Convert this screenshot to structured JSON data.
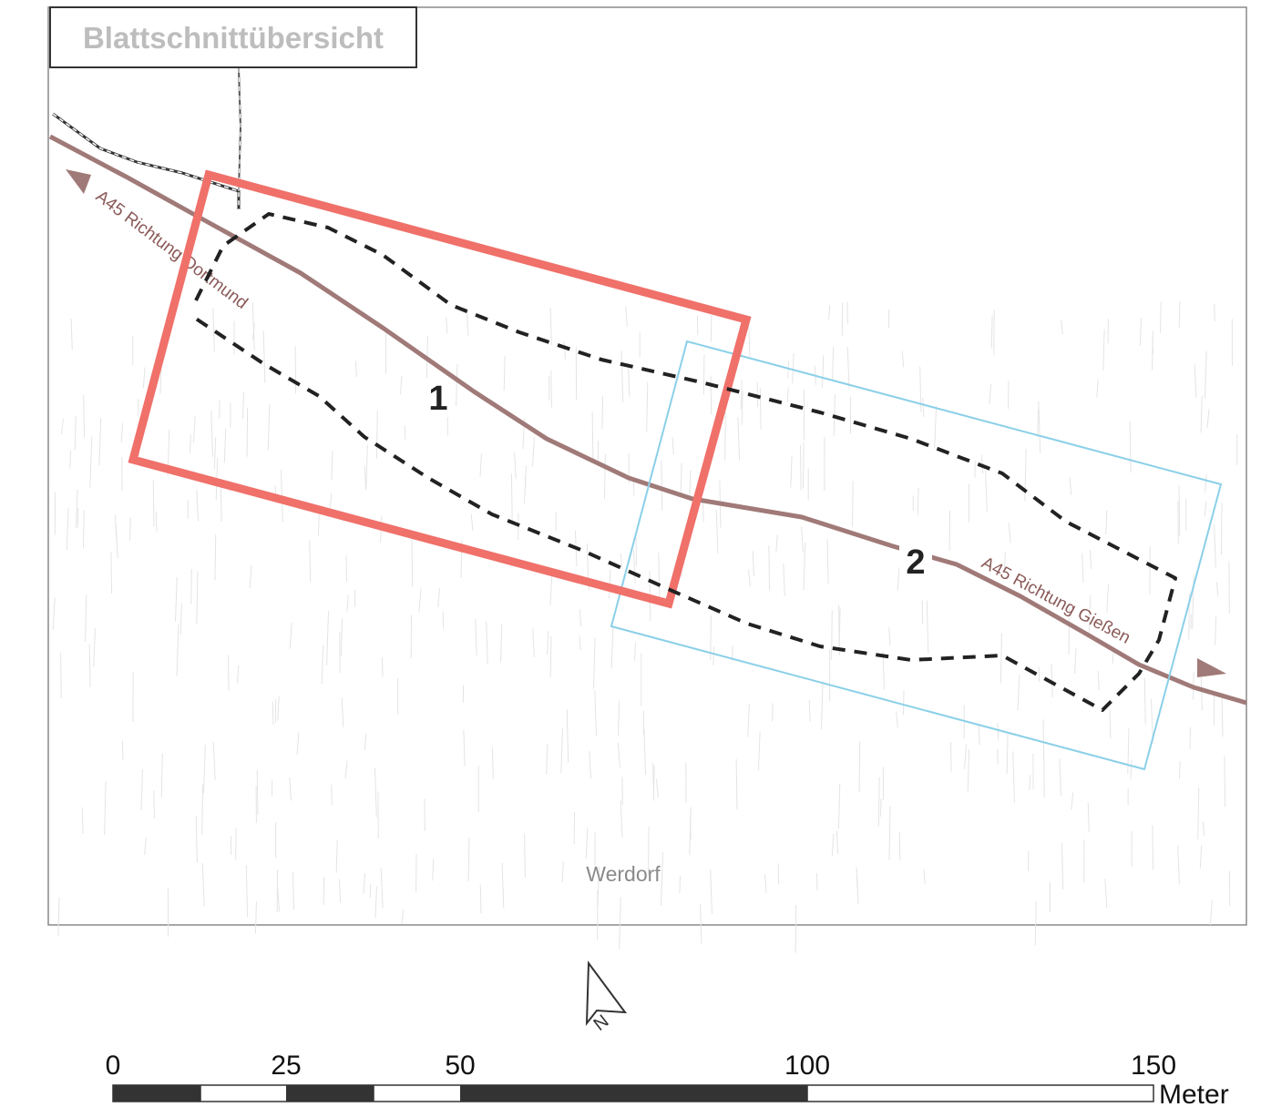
{
  "map": {
    "title": "Blattschnittübersicht",
    "place_label": "Werdorf",
    "road": {
      "label_west": "A45 Richtung Dortmund",
      "label_east": "A45 Richtung Gießen",
      "color": "#a07a78"
    },
    "sheets": [
      {
        "number": "1",
        "color": "#f0706a"
      },
      {
        "number": "2",
        "color": "#8ad0e8"
      }
    ],
    "project_area_color": "#222222",
    "north_arrow_label": "N"
  },
  "scale_bar": {
    "ticks": [
      "0",
      "25",
      "50",
      "100",
      "150"
    ],
    "unit": "Meter"
  }
}
